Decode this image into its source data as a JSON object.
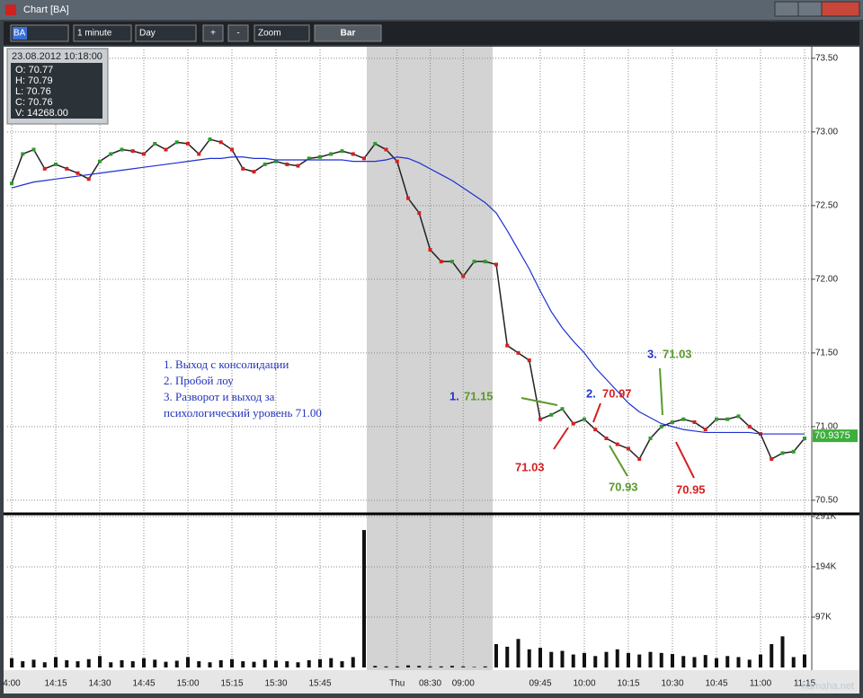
{
  "window": {
    "title": "Chart [BA]"
  },
  "toolbar": {
    "symbol": "BA",
    "interval": "1 minute",
    "period": "Day",
    "zoom_in": "+",
    "zoom_out": "-",
    "zoom": "Zoom",
    "style": "Bar"
  },
  "info_box": {
    "datetime": "23.08.2012 10:18:00",
    "lines": [
      "O: 70.77",
      "H: 70.79",
      "L: 70.76",
      "C: 70.76",
      "V: 14268.00"
    ]
  },
  "chart_data": [
    {
      "type": "line",
      "ylim": [
        70.42,
        73.56
      ],
      "yticks": [
        {
          "value": 70.5,
          "label": "70.50"
        },
        {
          "value": 71,
          "label": "71.00"
        },
        {
          "value": 71.5,
          "label": "71.50"
        },
        {
          "value": 72,
          "label": "72.00"
        },
        {
          "value": 72.5,
          "label": "72.50"
        },
        {
          "value": 73,
          "label": "73.00"
        },
        {
          "value": 73.5,
          "label": "73.50"
        }
      ],
      "grid": true,
      "series": [
        {
          "color": "#222222",
          "values": [
            72.65,
            72.85,
            72.88,
            72.75,
            72.78,
            72.75,
            72.72,
            72.68,
            72.8,
            72.85,
            72.88,
            72.87,
            72.85,
            72.92,
            72.88,
            72.93,
            72.92,
            72.85,
            72.95,
            72.93,
            72.88,
            72.75,
            72.73,
            72.78,
            72.8,
            72.78,
            72.77,
            72.82,
            72.83,
            72.85,
            72.87,
            72.85,
            72.82,
            72.92,
            72.88,
            72.8,
            72.55,
            72.45,
            72.2,
            72.12,
            72.12,
            72.02,
            72.12,
            72.12,
            72.1,
            71.55,
            71.5,
            71.45,
            71.05,
            71.08,
            71.12,
            71.02,
            71.05,
            70.98,
            70.92,
            70.88,
            70.85,
            70.78,
            70.92,
            71.0,
            71.03,
            71.05,
            71.03,
            70.98,
            71.05,
            71.05,
            71.07,
            71.0,
            70.95,
            70.78,
            70.82,
            70.83,
            70.92
          ]
        },
        {
          "color": "#1f2fd0",
          "values": [
            72.62,
            72.64,
            72.66,
            72.67,
            72.68,
            72.69,
            72.7,
            72.71,
            72.72,
            72.73,
            72.74,
            72.75,
            72.76,
            72.77,
            72.78,
            72.79,
            72.8,
            72.81,
            72.82,
            72.82,
            72.83,
            72.83,
            72.82,
            72.82,
            72.81,
            72.81,
            72.81,
            72.81,
            72.81,
            72.81,
            72.81,
            72.8,
            72.8,
            72.8,
            72.81,
            72.83,
            72.82,
            72.79,
            72.75,
            72.71,
            72.67,
            72.62,
            72.57,
            72.52,
            72.45,
            72.33,
            72.2,
            72.07,
            71.92,
            71.78,
            71.67,
            71.58,
            71.5,
            71.4,
            71.32,
            71.24,
            71.16,
            71.1,
            71.06,
            71.02,
            71.0,
            70.98,
            70.97,
            70.96,
            70.96,
            70.96,
            70.96,
            70.96,
            70.95,
            70.95,
            70.95,
            70.95,
            70.95
          ]
        }
      ],
      "last_price": 70.9375,
      "last_price_color": "#3cae3c",
      "notes": [
        "1. Выход с консолидации",
        "2. Пробой лоу",
        "3. Разворот и выход за",
        "психологический уровень 71.00"
      ],
      "annotations": [
        {
          "number": "1.",
          "value": 71.15,
          "color": "#5a9a2a"
        },
        {
          "number": "2.",
          "value": 70.97,
          "color": "#d42020"
        },
        {
          "number": "3.",
          "value": 71.03,
          "color": "#5a9a2a"
        },
        {
          "value": 71.03,
          "color": "#d42020"
        },
        {
          "value": 70.93,
          "color": "#5a9a2a"
        },
        {
          "value": 70.95,
          "color": "#d42020"
        }
      ]
    },
    {
      "type": "bar",
      "categories": [
        "4:00",
        null,
        null,
        null,
        "14:15",
        null,
        null,
        null,
        "14:30",
        null,
        null,
        null,
        "14:45",
        null,
        null,
        null,
        "15:00",
        null,
        null,
        null,
        "15:15",
        null,
        null,
        null,
        "15:30",
        null,
        null,
        null,
        "15:45",
        null,
        null,
        null,
        null,
        null,
        null,
        "Thu",
        null,
        null,
        "08:30",
        null,
        null,
        "09:00",
        null,
        null,
        null,
        null,
        null,
        null,
        "09:45",
        null,
        null,
        null,
        "10:00",
        null,
        null,
        null,
        "10:15",
        null,
        null,
        null,
        "10:30",
        null,
        null,
        null,
        "10:45",
        null,
        null,
        null,
        "11:00",
        null,
        null,
        null,
        "11:15"
      ],
      "values": [
        18000,
        12000,
        15000,
        10000,
        20000,
        14000,
        12000,
        16000,
        22000,
        10000,
        14000,
        12000,
        18000,
        15000,
        11000,
        13000,
        20000,
        12000,
        10000,
        14000,
        16000,
        12000,
        11000,
        15000,
        13000,
        12000,
        10000,
        14000,
        16000,
        18000,
        12000,
        20000,
        265000,
        3000,
        2000,
        2000,
        4000,
        3000,
        2000,
        2000,
        3000,
        2000,
        1000,
        2000,
        45000,
        40000,
        55000,
        35000,
        38000,
        30000,
        32000,
        25000,
        28000,
        22000,
        30000,
        35000,
        28000,
        25000,
        30000,
        28000,
        26000,
        22000,
        20000,
        24000,
        18000,
        22000,
        20000,
        15000,
        25000,
        45000,
        60000,
        20000,
        25000
      ],
      "color": "#111111",
      "ylim": [
        0,
        291000
      ],
      "yticks": [
        {
          "value": 97000,
          "label": "97K"
        },
        {
          "value": 194000,
          "label": "194K"
        },
        {
          "value": 291000,
          "label": "291K"
        }
      ],
      "grid": true
    }
  ],
  "watermark": "hamaha.net"
}
